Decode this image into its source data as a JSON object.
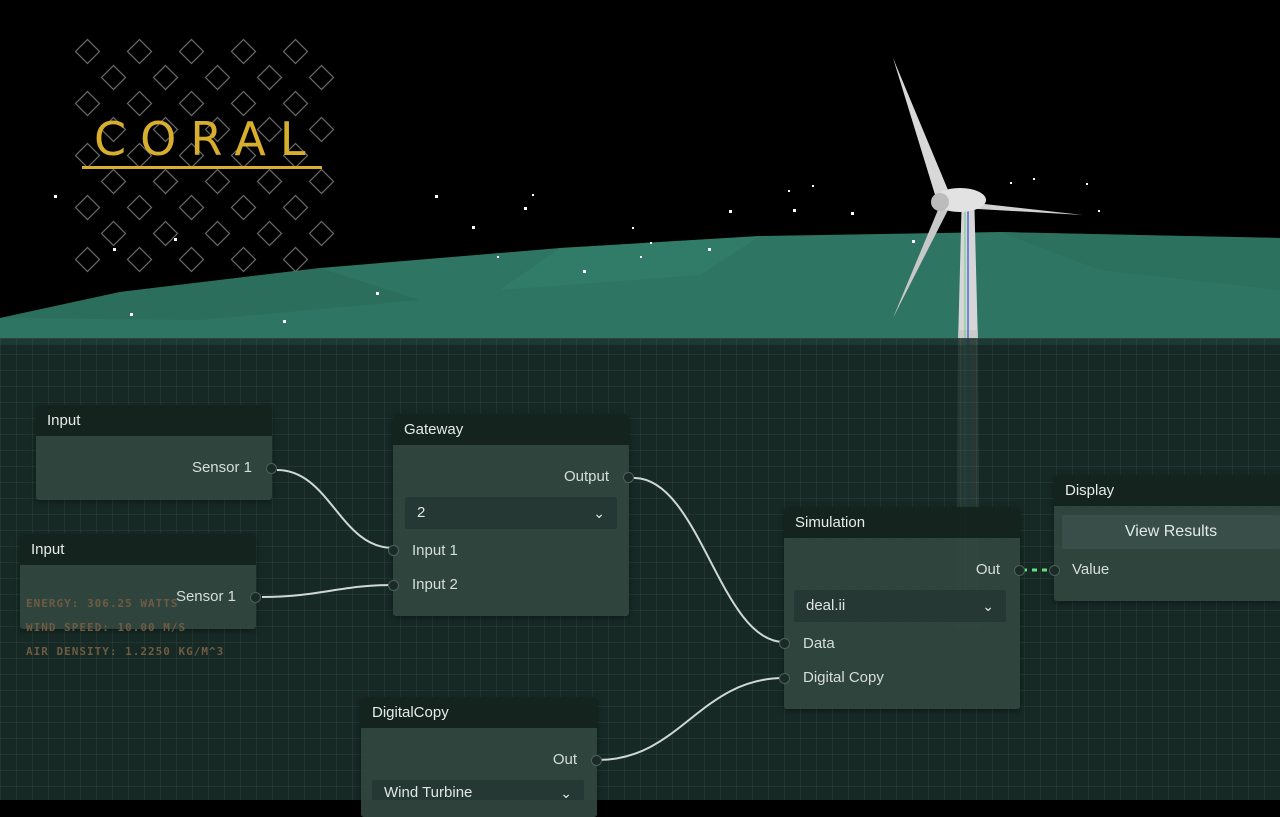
{
  "brand": {
    "name": "CORAL",
    "color": "#d8ae2e"
  },
  "hud": {
    "energy": "ENERGY: 306.25 WATTS",
    "wind_speed": "WIND SPEED: 10.00 M/S",
    "air_density": "AIR DENSITY: 1.2250 KG/M^3"
  },
  "nodes": {
    "input1": {
      "title": "Input",
      "output": "Sensor 1"
    },
    "input2": {
      "title": "Input",
      "output": "Sensor 1"
    },
    "gateway": {
      "title": "Gateway",
      "output": "Output",
      "select_value": "2",
      "inputs": [
        "Input 1",
        "Input 2"
      ]
    },
    "simulation": {
      "title": "Simulation",
      "output": "Out",
      "select_value": "deal.ii",
      "inputs": [
        "Data",
        "Digital Copy"
      ]
    },
    "display": {
      "title": "Display",
      "button": "View Results",
      "input": "Value"
    },
    "digitalcopy": {
      "title": "DigitalCopy",
      "output": "Out",
      "select_value": "Wind Turbine"
    }
  },
  "icons": {
    "select": "chevron-down-icon",
    "logo_pattern": "diamond-grid-icon",
    "turbine": "wind-turbine-icon"
  },
  "colors": {
    "ground": "#2f7563",
    "sky": "#000000",
    "wire": "#d0d8d4",
    "active_wire": "#5fe07a"
  }
}
